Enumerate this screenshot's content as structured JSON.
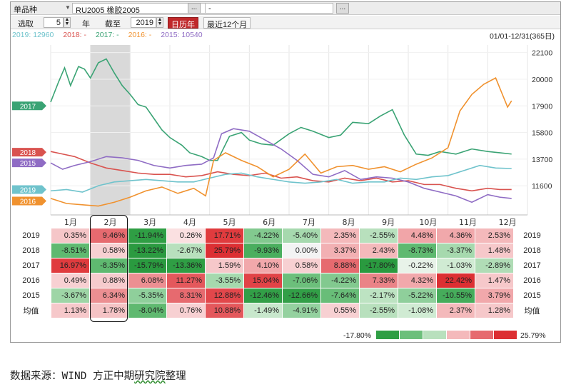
{
  "toolbar": {
    "mode_label": "单品种",
    "instrument": "RU2005 橡胶2005",
    "second_instrument": "-",
    "browse_label": "..."
  },
  "controls": {
    "select_label": "选取",
    "years_value": "5",
    "year_unit": "年",
    "end_label": "截至",
    "end_year": "2019",
    "calendar_year_btn": "日历年",
    "recent_12m_btn": "最近12个月"
  },
  "legend": [
    {
      "label": "2019: 12960",
      "color": "#6fc3cc"
    },
    {
      "label": "2018: -",
      "color": "#d9534f"
    },
    {
      "label": "2017: -",
      "color": "#3aa374"
    },
    {
      "label": "2016: -",
      "color": "#f0922f"
    },
    {
      "label": "2015: 10540",
      "color": "#8f6cc4"
    }
  ],
  "date_range": "01/01-12/31(365日)",
  "chart_data": {
    "type": "line",
    "y_ticks": [
      22100,
      20000,
      17900,
      15800,
      13700,
      11600
    ],
    "ylim": [
      9300,
      22700
    ],
    "months": [
      "1月",
      "2月",
      "3月",
      "4月",
      "5月",
      "6月",
      "7月",
      "8月",
      "9月",
      "10月",
      "11月",
      "12月"
    ],
    "shaded_period": "2月",
    "series_tags": [
      {
        "name": "2017",
        "value": 17900,
        "color": "#3aa374"
      },
      {
        "name": "2018",
        "value": 14250,
        "color": "#d9534f"
      },
      {
        "name": "2015",
        "value": 13400,
        "color": "#8f6cc4"
      },
      {
        "name": "2019",
        "value": 11300,
        "color": "#6fc3cc"
      },
      {
        "name": "2016",
        "value": 10400,
        "color": "#f0922f"
      }
    ],
    "series": [
      {
        "name": "2017",
        "color": "#3aa374",
        "x": [
          0,
          0.2,
          0.35,
          0.5,
          0.7,
          0.85,
          1.0,
          1.2,
          1.4,
          1.6,
          1.8,
          2.0,
          2.2,
          2.4,
          2.6,
          2.8,
          3.0,
          3.3,
          3.5,
          3.8,
          4.0,
          4.2,
          4.5,
          4.8,
          5.0,
          5.3,
          5.6,
          6.0,
          6.3,
          6.6,
          7.0,
          7.3,
          7.6,
          8.0,
          8.3,
          8.6,
          8.9,
          9.2,
          9.5,
          9.8,
          10.2,
          10.6,
          11.0,
          11.3,
          11.6
        ],
        "y": [
          18200,
          19800,
          20900,
          19500,
          21000,
          20800,
          20100,
          21300,
          21600,
          20500,
          19500,
          18800,
          18000,
          17800,
          16900,
          16000,
          15400,
          14800,
          14200,
          13900,
          13600,
          13600,
          15500,
          15800,
          15200,
          14900,
          14800,
          15700,
          16200,
          15900,
          15400,
          15600,
          16600,
          16500,
          17100,
          17600,
          15600,
          14100,
          14000,
          14300,
          14100,
          14500,
          14300,
          14200,
          14100
        ]
      },
      {
        "name": "2018",
        "color": "#d9534f",
        "x": [
          0,
          0.3,
          0.6,
          1.0,
          1.4,
          1.8,
          2.2,
          2.6,
          3.0,
          3.4,
          3.8,
          4.2,
          4.6,
          5.0,
          5.4,
          5.8,
          6.2,
          6.6,
          7.0,
          7.4,
          7.8,
          8.2,
          8.6,
          9.0,
          9.4,
          9.8,
          10.2,
          10.6,
          11.0,
          11.3,
          11.6
        ],
        "y": [
          14300,
          14100,
          13900,
          13400,
          13000,
          12800,
          12600,
          12500,
          12500,
          12300,
          12400,
          12700,
          12500,
          12400,
          12600,
          12200,
          12300,
          12000,
          11900,
          12200,
          12000,
          12200,
          11900,
          12000,
          11700,
          11700,
          11400,
          11200,
          11400,
          11300,
          11300
        ]
      },
      {
        "name": "2015",
        "color": "#8f6cc4",
        "x": [
          0,
          0.3,
          0.6,
          1.0,
          1.4,
          1.8,
          2.2,
          2.6,
          3.0,
          3.4,
          3.8,
          4.1,
          4.3,
          4.6,
          5.0,
          5.4,
          5.8,
          6.2,
          6.6,
          7.0,
          7.4,
          7.8,
          8.2,
          8.6,
          9.0,
          9.4,
          9.8,
          10.2,
          10.6,
          11.0,
          11.3,
          11.6
        ],
        "y": [
          13400,
          12900,
          13200,
          13500,
          13900,
          13800,
          13600,
          13200,
          13000,
          13200,
          13300,
          13800,
          15700,
          16100,
          15900,
          15200,
          14500,
          13600,
          12500,
          12300,
          12800,
          12100,
          12300,
          12200,
          11900,
          11400,
          11100,
          10800,
          10300,
          10900,
          10700,
          10600
        ]
      },
      {
        "name": "2019",
        "color": "#6fc3cc",
        "x": [
          0,
          0.4,
          0.8,
          1.2,
          1.6,
          2.0,
          2.4,
          2.8,
          3.2,
          3.6,
          4.0,
          4.4,
          4.8,
          5.2,
          5.6,
          6.0,
          6.4,
          6.8,
          7.2,
          7.6,
          8.0,
          8.4,
          8.8,
          9.2,
          9.6,
          10.0,
          10.4,
          10.8,
          11.2,
          11.6
        ],
        "y": [
          11200,
          11300,
          11100,
          11600,
          11900,
          12000,
          12100,
          12000,
          11900,
          11900,
          12200,
          12500,
          12600,
          12300,
          12100,
          11900,
          11800,
          11900,
          12100,
          11800,
          11900,
          11900,
          12200,
          12100,
          12300,
          12400,
          12800,
          13200,
          13000,
          12960
        ]
      },
      {
        "name": "2016",
        "color": "#f0922f",
        "x": [
          0,
          0.4,
          0.8,
          1.2,
          1.6,
          2.0,
          2.4,
          2.8,
          3.2,
          3.6,
          3.9,
          4.1,
          4.4,
          4.8,
          5.2,
          5.6,
          6.0,
          6.4,
          6.8,
          7.2,
          7.6,
          8.0,
          8.4,
          8.8,
          9.2,
          9.6,
          10.0,
          10.3,
          10.6,
          10.9,
          11.2,
          11.5,
          11.6
        ],
        "y": [
          10600,
          10200,
          10100,
          10000,
          10300,
          10700,
          11200,
          11500,
          11000,
          11400,
          10800,
          13600,
          14200,
          13600,
          13100,
          12300,
          12900,
          14100,
          12600,
          13100,
          13200,
          12900,
          13100,
          12700,
          13300,
          13800,
          14600,
          17500,
          18800,
          19600,
          20100,
          17800,
          18300
        ]
      }
    ]
  },
  "table": {
    "rows": [
      {
        "label": "2019",
        "values": [
          "0.35%",
          "9.46%",
          "-11.94%",
          "0.26%",
          "17.71%",
          "-4.22%",
          "-5.40%",
          "2.35%",
          "-2.55%",
          "4.48%",
          "4.36%",
          "2.53%"
        ],
        "colors": [
          "#f5c6c8",
          "#e66a6f",
          "#2f9e44",
          "#fbe0e1",
          "#e03b3e",
          "#82c98f",
          "#a6d9ae",
          "#f4b9bb",
          "#b8e0bd",
          "#f1a5a8",
          "#f1a8ab",
          "#f4b9bb"
        ]
      },
      {
        "label": "2018",
        "values": [
          "-8.51%",
          "0.58%",
          "-13.22%",
          "-2.67%",
          "25.79%",
          "-9.93%",
          "0.00%",
          "3.37%",
          "2.43%",
          "-8.73%",
          "-3.37%",
          "1.48%"
        ],
        "colors": [
          "#5fb970",
          "#f7d0d2",
          "#2b9a40",
          "#b8e0bd",
          "#dc2f33",
          "#4aae5e",
          "#f3f3f3",
          "#f2b0b3",
          "#f4b9bb",
          "#5fb970",
          "#a6d9ae",
          "#f6c8ca"
        ]
      },
      {
        "label": "2017",
        "values": [
          "16.97%",
          "-8.35%",
          "-15.79%",
          "-13.36%",
          "1.59%",
          "4.10%",
          "0.58%",
          "8.88%",
          "-17.80%",
          "-0.22%",
          "-1.03%",
          "-2.89%"
        ],
        "colors": [
          "#e03b3e",
          "#5fb970",
          "#2a9a3f",
          "#2f9e44",
          "#f6c8ca",
          "#f1a8ab",
          "#f7d0d2",
          "#e66a6f",
          "#2a9a3f",
          "#e8f3e9",
          "#d0ebd3",
          "#b0dcb6"
        ]
      },
      {
        "label": "2016",
        "values": [
          "0.49%",
          "0.88%",
          "6.08%",
          "11.27%",
          "-3.55%",
          "15.04%",
          "-7.06%",
          "-4.22%",
          "7.33%",
          "4.32%",
          "22.42%",
          "1.47%"
        ],
        "colors": [
          "#f7d0d2",
          "#f6cbcd",
          "#ec8f92",
          "#e4585c",
          "#a6d9ae",
          "#e14347",
          "#6cbf7b",
          "#82c98f",
          "#ea8387",
          "#f1a8ab",
          "#dc2f33",
          "#f6c8ca"
        ]
      },
      {
        "label": "2015",
        "values": [
          "-3.67%",
          "6.34%",
          "-5.35%",
          "8.31%",
          "12.88%",
          "-12.46%",
          "-12.66%",
          "-7.64%",
          "-2.17%",
          "-5.22%",
          "-10.55%",
          "3.79%"
        ],
        "colors": [
          "#9ed5a6",
          "#ec8f92",
          "#8fcf9b",
          "#e66a6f",
          "#e2474b",
          "#329f47",
          "#329f47",
          "#68bd78",
          "#bde3c2",
          "#8fcf9b",
          "#46ac5b",
          "#f1a8ab"
        ]
      },
      {
        "label": "均值",
        "values": [
          "1.13%",
          "1.78%",
          "-8.04%",
          "0.76%",
          "10.88%",
          "-1.49%",
          "-4.91%",
          "0.55%",
          "-2.55%",
          "-1.08%",
          "2.37%",
          "1.28%"
        ],
        "colors": [
          "#f6c8ca",
          "#f5c3c5",
          "#5fb970",
          "#f7d0d2",
          "#e4585c",
          "#c8e7cc",
          "#94d19f",
          "#f7d0d2",
          "#b8e0bd",
          "#d0ebd3",
          "#f4b9bb",
          "#f6c8ca"
        ]
      }
    ]
  },
  "scale": {
    "min_label": "-17.80%",
    "max_label": "25.79%",
    "swatches": [
      "#2f9e44",
      "#6cbf7b",
      "#b8e0bd",
      "#f4b9bb",
      "#e66a6f",
      "#dc2f33"
    ]
  },
  "source_prefix": "数据来源：WIND  方正中期",
  "source_underlined": "研究院",
  "source_suffix": "整理"
}
